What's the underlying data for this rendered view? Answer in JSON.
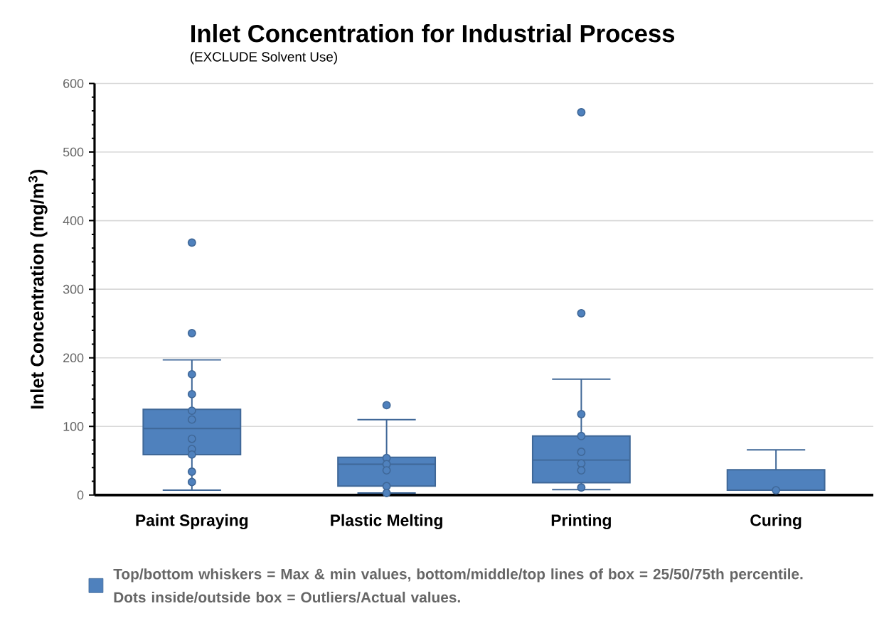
{
  "chart_data": {
    "type": "box",
    "title": "Inlet Concentration for Industrial Process",
    "subtitle": "(EXCLUDE Solvent Use)",
    "ylabel": "Inlet Concentration (mg/m$^{3}$)",
    "categories": [
      "Paint Spraying",
      "Plastic Melting",
      "Printing",
      "Curing"
    ],
    "series": [
      {
        "name": "Top/bottom whiskers = Max & min values, bottom/middle/top lines of box = 25/50/75th percentile. Dots inside/outside box = Outliers/Actual values.",
        "color": "#4f81bd",
        "boxes": [
          {
            "low": 7,
            "q1": 59,
            "median": 97,
            "q3": 125,
            "high": 197,
            "outliers": [
              368,
              236,
              176,
              147,
              123,
              110,
              82,
              67,
              59,
              34,
              19
            ]
          },
          {
            "low": 3,
            "q1": 13,
            "median": 45,
            "q3": 55,
            "high": 110,
            "outliers": [
              131,
              54,
              45,
              36,
              13,
              3
            ]
          },
          {
            "low": 8,
            "q1": 18,
            "median": 51,
            "q3": 86,
            "high": 169,
            "outliers": [
              558,
              265,
              118,
              86,
              63,
              46,
              36,
              11
            ]
          },
          {
            "low": 7,
            "q1": 7,
            "median": 7,
            "q3": 37,
            "high": 66,
            "outliers": [
              7
            ]
          }
        ]
      }
    ],
    "ylim": [
      0,
      600
    ],
    "yticks": [
      0,
      100,
      200,
      300,
      400,
      500,
      600
    ],
    "grid": "y",
    "legend": "bottom"
  }
}
